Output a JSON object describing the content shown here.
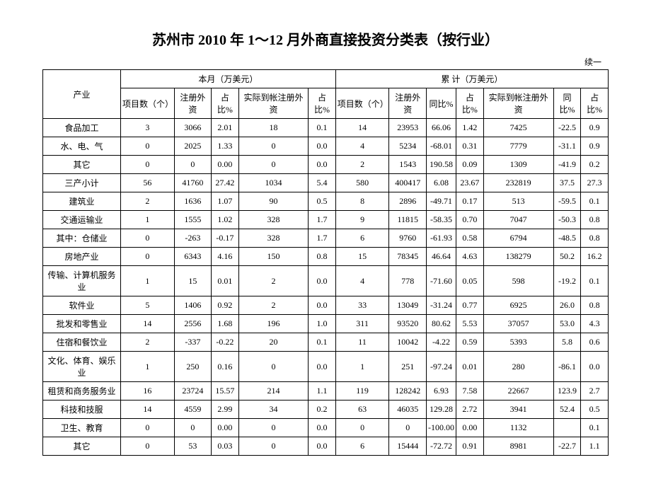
{
  "title": "苏州市 2010 年 1～12 月外商直接投资分类表（按行业）",
  "continued_label": "续一",
  "headers": {
    "industry": "产业",
    "month_group": "本月（万美元）",
    "cumulative_group": "累        计（万美元）",
    "project_count": "项目数（个）",
    "registered_capital": "注册外资",
    "share_pct": "占比%",
    "actual_registered": "实际到帐注册外资",
    "reg_capital_2": "注册外资",
    "yoy_pct": "同比%"
  },
  "rows": [
    {
      "label": "食品加工",
      "m_projects": "3",
      "m_reg": "3066",
      "m_share": "2.01",
      "m_actual": "18",
      "m_share2": "0.1",
      "c_projects": "14",
      "c_reg": "23953",
      "c_yoy": "66.06",
      "c_share": "1.42",
      "c_actual": "7425",
      "c_yoy2": "-22.5",
      "c_share2": "0.9"
    },
    {
      "label": "水、电、气",
      "m_projects": "0",
      "m_reg": "2025",
      "m_share": "1.33",
      "m_actual": "0",
      "m_share2": "0.0",
      "c_projects": "4",
      "c_reg": "5234",
      "c_yoy": "-68.01",
      "c_share": "0.31",
      "c_actual": "7779",
      "c_yoy2": "-31.1",
      "c_share2": "0.9"
    },
    {
      "label": "其它",
      "m_projects": "0",
      "m_reg": "0",
      "m_share": "0.00",
      "m_actual": "0",
      "m_share2": "0.0",
      "c_projects": "2",
      "c_reg": "1543",
      "c_yoy": "190.58",
      "c_share": "0.09",
      "c_actual": "1309",
      "c_yoy2": "-41.9",
      "c_share2": "0.2"
    },
    {
      "label": "三产小计",
      "m_projects": "56",
      "m_reg": "41760",
      "m_share": "27.42",
      "m_actual": "1034",
      "m_share2": "5.4",
      "c_projects": "580",
      "c_reg": "400417",
      "c_yoy": "6.08",
      "c_share": "23.67",
      "c_actual": "232819",
      "c_yoy2": "37.5",
      "c_share2": "27.3"
    },
    {
      "label": "建筑业",
      "m_projects": "2",
      "m_reg": "1636",
      "m_share": "1.07",
      "m_actual": "90",
      "m_share2": "0.5",
      "c_projects": "8",
      "c_reg": "2896",
      "c_yoy": "-49.71",
      "c_share": "0.17",
      "c_actual": "513",
      "c_yoy2": "-59.5",
      "c_share2": "0.1"
    },
    {
      "label": "交通运输业",
      "m_projects": "1",
      "m_reg": "1555",
      "m_share": "1.02",
      "m_actual": "328",
      "m_share2": "1.7",
      "c_projects": "9",
      "c_reg": "11815",
      "c_yoy": "-58.35",
      "c_share": "0.70",
      "c_actual": "7047",
      "c_yoy2": "-50.3",
      "c_share2": "0.8"
    },
    {
      "label": "其中：仓储业",
      "m_projects": "0",
      "m_reg": "-263",
      "m_share": "-0.17",
      "m_actual": "328",
      "m_share2": "1.7",
      "c_projects": "6",
      "c_reg": "9760",
      "c_yoy": "-61.93",
      "c_share": "0.58",
      "c_actual": "6794",
      "c_yoy2": "-48.5",
      "c_share2": "0.8"
    },
    {
      "label": "房地产业",
      "m_projects": "0",
      "m_reg": "6343",
      "m_share": "4.16",
      "m_actual": "150",
      "m_share2": "0.8",
      "c_projects": "15",
      "c_reg": "78345",
      "c_yoy": "46.64",
      "c_share": "4.63",
      "c_actual": "138279",
      "c_yoy2": "50.2",
      "c_share2": "16.2"
    },
    {
      "label": "传输、计算机服务业",
      "m_projects": "1",
      "m_reg": "15",
      "m_share": "0.01",
      "m_actual": "2",
      "m_share2": "0.0",
      "c_projects": "4",
      "c_reg": "778",
      "c_yoy": "-71.60",
      "c_share": "0.05",
      "c_actual": "598",
      "c_yoy2": "-19.2",
      "c_share2": "0.1"
    },
    {
      "label": "软件业",
      "m_projects": "5",
      "m_reg": "1406",
      "m_share": "0.92",
      "m_actual": "2",
      "m_share2": "0.0",
      "c_projects": "33",
      "c_reg": "13049",
      "c_yoy": "-31.24",
      "c_share": "0.77",
      "c_actual": "6925",
      "c_yoy2": "26.0",
      "c_share2": "0.8"
    },
    {
      "label": "批发和零售业",
      "m_projects": "14",
      "m_reg": "2556",
      "m_share": "1.68",
      "m_actual": "196",
      "m_share2": "1.0",
      "c_projects": "311",
      "c_reg": "93520",
      "c_yoy": "80.62",
      "c_share": "5.53",
      "c_actual": "37057",
      "c_yoy2": "53.0",
      "c_share2": "4.3"
    },
    {
      "label": "住宿和餐饮业",
      "m_projects": "2",
      "m_reg": "-337",
      "m_share": "-0.22",
      "m_actual": "20",
      "m_share2": "0.1",
      "c_projects": "11",
      "c_reg": "10042",
      "c_yoy": "-4.22",
      "c_share": "0.59",
      "c_actual": "5393",
      "c_yoy2": "5.8",
      "c_share2": "0.6"
    },
    {
      "label": "文化、体育、娱乐业",
      "m_projects": "1",
      "m_reg": "250",
      "m_share": "0.16",
      "m_actual": "0",
      "m_share2": "0.0",
      "c_projects": "1",
      "c_reg": "251",
      "c_yoy": "-97.24",
      "c_share": "0.01",
      "c_actual": "280",
      "c_yoy2": "-86.1",
      "c_share2": "0.0"
    },
    {
      "label": "租赁和商务服务业",
      "m_projects": "16",
      "m_reg": "23724",
      "m_share": "15.57",
      "m_actual": "214",
      "m_share2": "1.1",
      "c_projects": "119",
      "c_reg": "128242",
      "c_yoy": "6.93",
      "c_share": "7.58",
      "c_actual": "22667",
      "c_yoy2": "123.9",
      "c_share2": "2.7"
    },
    {
      "label": "科技和技服",
      "m_projects": "14",
      "m_reg": "4559",
      "m_share": "2.99",
      "m_actual": "34",
      "m_share2": "0.2",
      "c_projects": "63",
      "c_reg": "46035",
      "c_yoy": "129.28",
      "c_share": "2.72",
      "c_actual": "3941",
      "c_yoy2": "52.4",
      "c_share2": "0.5"
    },
    {
      "label": "卫生、教育",
      "m_projects": "0",
      "m_reg": "0",
      "m_share": "0.00",
      "m_actual": "0",
      "m_share2": "0.0",
      "c_projects": "0",
      "c_reg": "0",
      "c_yoy": "-100.00",
      "c_share": "0.00",
      "c_actual": "1132",
      "c_yoy2": "",
      "c_share2": "0.1"
    },
    {
      "label": "其它",
      "m_projects": "0",
      "m_reg": "53",
      "m_share": "0.03",
      "m_actual": "0",
      "m_share2": "0.0",
      "c_projects": "6",
      "c_reg": "15444",
      "c_yoy": "-72.72",
      "c_share": "0.91",
      "c_actual": "8981",
      "c_yoy2": "-22.7",
      "c_share2": "1.1"
    }
  ],
  "styling": {
    "background_color": "#ffffff",
    "text_color": "#000000",
    "border_color": "#000000",
    "title_fontsize": 20,
    "body_fontsize": 12,
    "font_family": "SimSun"
  }
}
